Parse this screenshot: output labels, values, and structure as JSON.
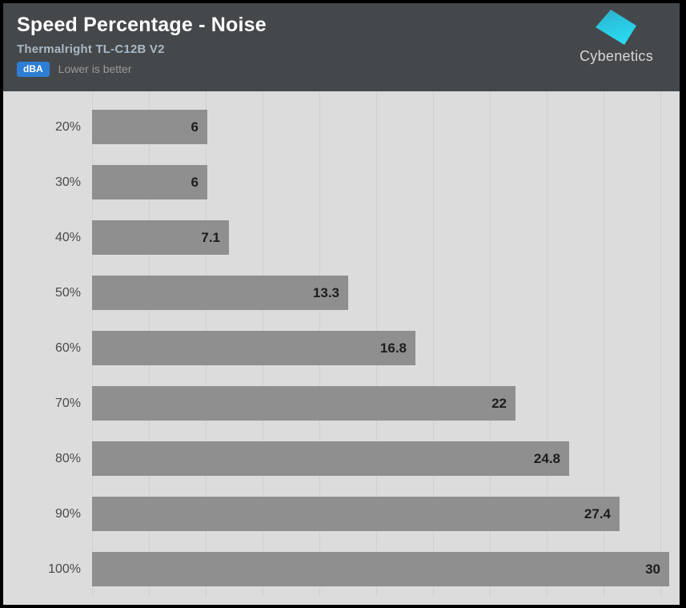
{
  "header": {
    "title": "Speed Percentage - Noise",
    "subtitle": "Thermalright TL-C12B V2",
    "unit_badge": "dBA",
    "note": "Lower is better",
    "logo_text": "Cybenetics"
  },
  "colors": {
    "header_bg": "#45484b",
    "plot_bg": "#dcdcdc",
    "bar": "#8f8f8f",
    "gridline": "#cfcfcf",
    "badge_bg": "#2d7ed4",
    "subtitle_text": "#a9b8c4",
    "note_text": "#999999",
    "category_text": "#4a4a4a",
    "value_text": "#1d1d1d",
    "logo_cyan_top": "#2fa9c6",
    "logo_cyan_bottom": "#29d8ef"
  },
  "chart_data": {
    "type": "bar",
    "orientation": "horizontal",
    "title": "Speed Percentage - Noise",
    "subtitle": "Thermalright TL-C12B V2",
    "unit": "dBA",
    "note": "Lower is better",
    "categories": [
      "20%",
      "30%",
      "40%",
      "50%",
      "60%",
      "70%",
      "80%",
      "90%",
      "100%"
    ],
    "values": [
      6,
      6,
      7.1,
      13.3,
      16.8,
      22,
      24.8,
      27.4,
      30
    ],
    "value_labels": [
      "6",
      "6",
      "7.1",
      "13.3",
      "16.8",
      "22",
      "24.8",
      "27.4",
      "30"
    ],
    "xlim": [
      0,
      30
    ],
    "grid_step": 3,
    "grid_on": true,
    "legend": "none"
  }
}
